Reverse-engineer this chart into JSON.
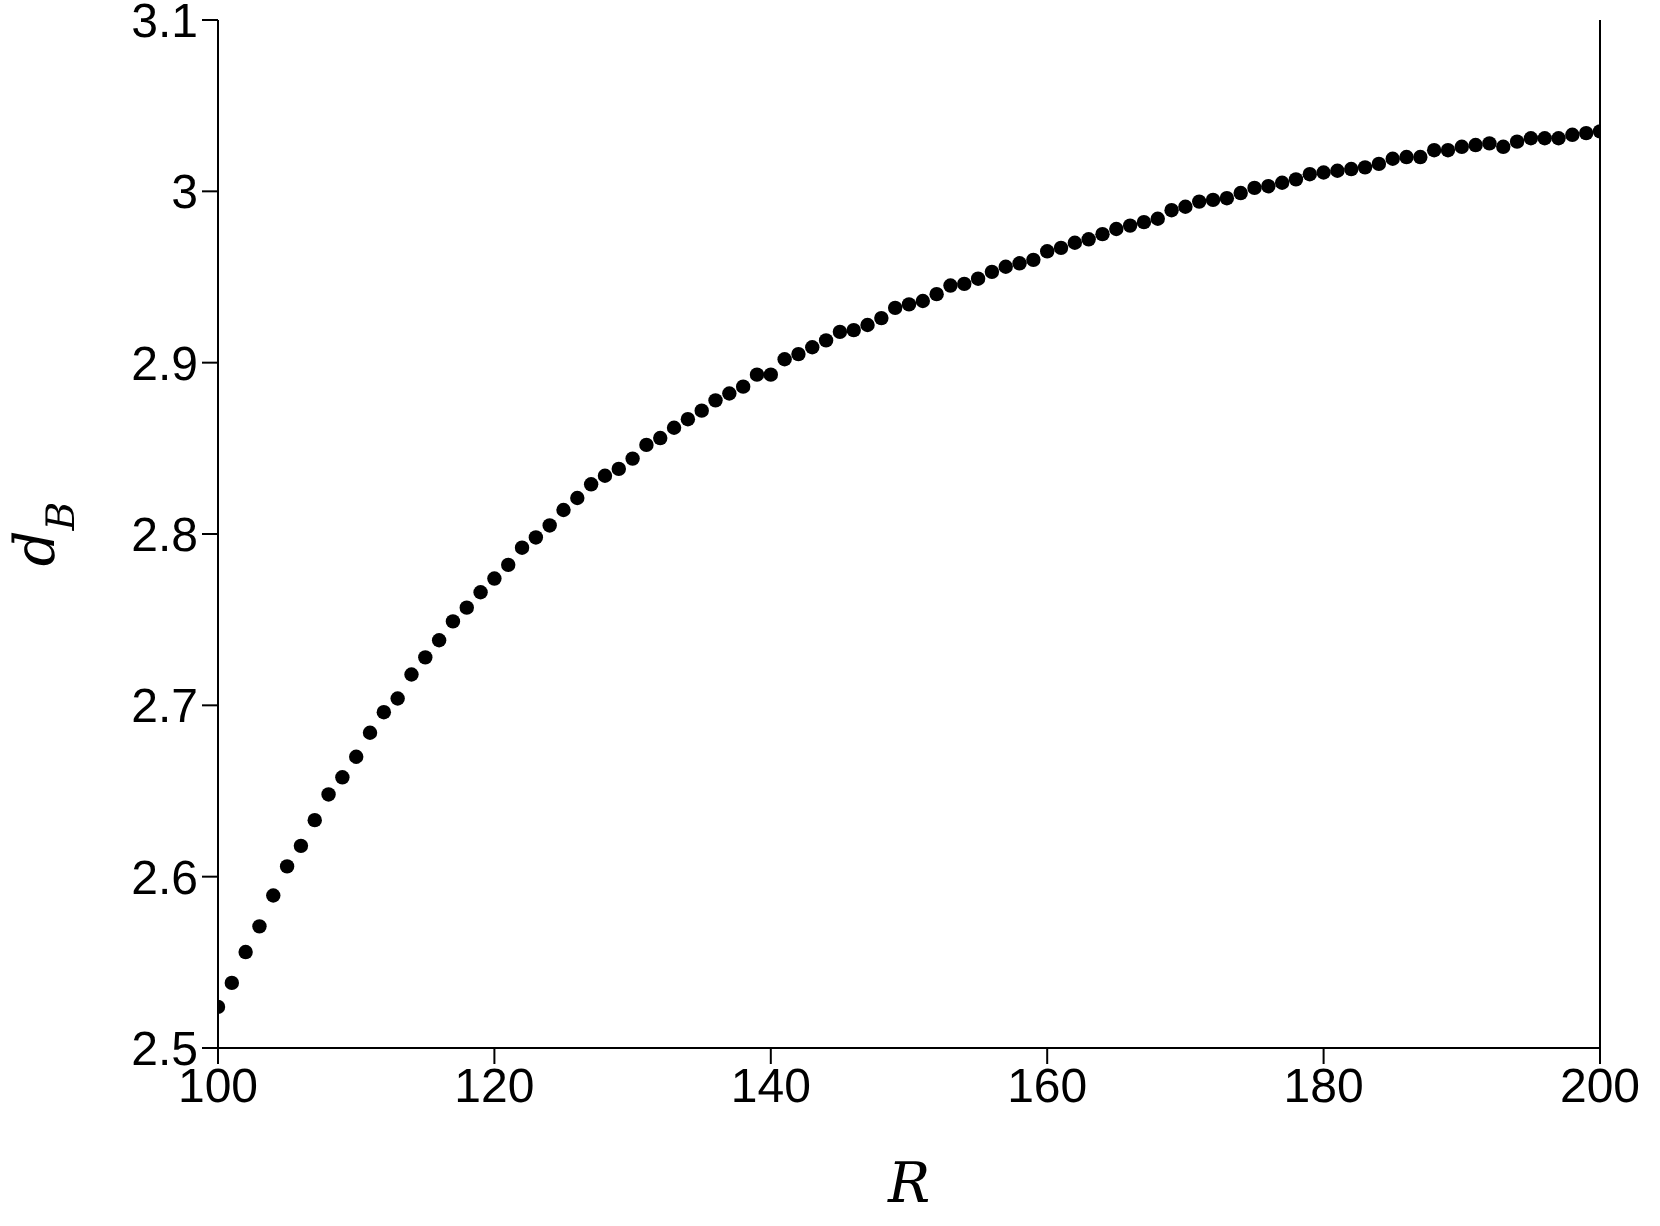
{
  "chart_data": {
    "type": "scatter",
    "xlabel": "R",
    "ylabel": "d$_{B}$",
    "x": [
      100,
      101,
      102,
      103,
      104,
      105,
      106,
      107,
      108,
      109,
      110,
      111,
      112,
      113,
      114,
      115,
      116,
      117,
      118,
      119,
      120,
      121,
      122,
      123,
      124,
      125,
      126,
      127,
      128,
      129,
      130,
      131,
      132,
      133,
      134,
      135,
      136,
      137,
      138,
      139,
      140,
      141,
      142,
      143,
      144,
      145,
      146,
      147,
      148,
      149,
      150,
      151,
      152,
      153,
      154,
      155,
      156,
      157,
      158,
      159,
      160,
      161,
      162,
      163,
      164,
      165,
      166,
      167,
      168,
      169,
      170,
      171,
      172,
      173,
      174,
      175,
      176,
      177,
      178,
      179,
      180,
      181,
      182,
      183,
      184,
      185,
      186,
      187,
      188,
      189,
      190,
      191,
      192,
      193,
      194,
      195,
      196,
      197,
      198,
      199,
      200
    ],
    "series": [
      {
        "color": "#000000",
        "values": [
          2.524,
          2.538,
          2.556,
          2.571,
          2.589,
          2.606,
          2.618,
          2.633,
          2.648,
          2.658,
          2.67,
          2.684,
          2.696,
          2.704,
          2.718,
          2.728,
          2.738,
          2.749,
          2.757,
          2.766,
          2.774,
          2.782,
          2.792,
          2.798,
          2.805,
          2.814,
          2.821,
          2.829,
          2.834,
          2.838,
          2.844,
          2.852,
          2.856,
          2.862,
          2.867,
          2.872,
          2.878,
          2.882,
          2.886,
          2.893,
          2.893,
          2.902,
          2.905,
          2.909,
          2.913,
          2.918,
          2.919,
          2.922,
          2.926,
          2.932,
          2.934,
          2.936,
          2.94,
          2.945,
          2.946,
          2.949,
          2.953,
          2.956,
          2.958,
          2.96,
          2.965,
          2.967,
          2.97,
          2.972,
          2.975,
          2.978,
          2.98,
          2.982,
          2.984,
          2.989,
          2.991,
          2.994,
          2.995,
          2.996,
          2.999,
          3.002,
          3.003,
          3.005,
          3.007,
          3.01,
          3.011,
          3.012,
          3.013,
          3.014,
          3.016,
          3.019,
          3.02,
          3.02,
          3.024,
          3.024,
          3.026,
          3.027,
          3.028,
          3.026,
          3.029,
          3.031,
          3.031,
          3.031,
          3.033,
          3.034,
          3.035
        ]
      }
    ],
    "xlim": [
      100,
      200
    ],
    "xticks": [
      100,
      120,
      140,
      160,
      180,
      200
    ],
    "ylim": [
      2.5,
      3.1
    ],
    "yticks": [
      2.5,
      2.6,
      2.7,
      2.8,
      2.9,
      3,
      3.1
    ],
    "marker": "circle",
    "grid": false
  }
}
